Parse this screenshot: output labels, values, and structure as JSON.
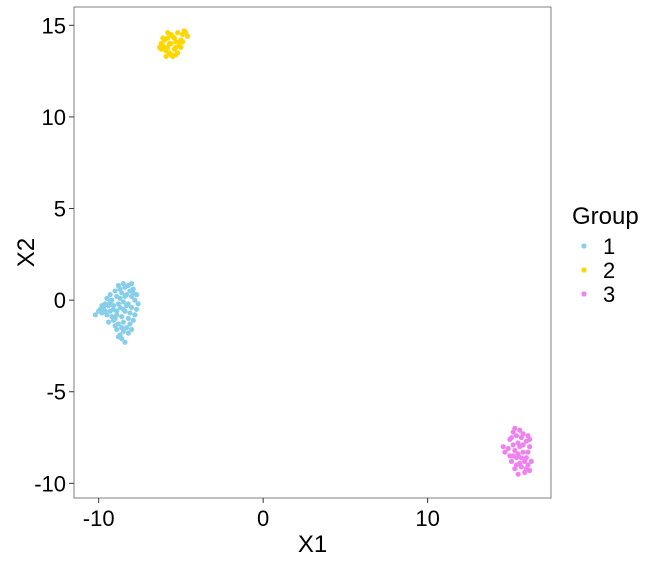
{
  "chart_data": {
    "type": "scatter",
    "xlabel": "X1",
    "ylabel": "X2",
    "xlim": [
      -11.5,
      17.5
    ],
    "ylim": [
      -10.8,
      16.0
    ],
    "xticks": [
      -10,
      0,
      10
    ],
    "xtick_labels": [
      "-10",
      "0",
      "10"
    ],
    "yticks": [
      -10,
      -5,
      0,
      5,
      10,
      15
    ],
    "ytick_labels": [
      "-10",
      "-5",
      "0",
      "5",
      "10",
      "15"
    ],
    "grid": false,
    "legend": {
      "title": "Group",
      "placement": "right"
    },
    "series": [
      {
        "name": "1",
        "color": "#87CEEB",
        "points": [
          [
            -10.2,
            -0.8
          ],
          [
            -10.0,
            -0.6
          ],
          [
            -9.8,
            -0.7
          ],
          [
            -9.7,
            -0.4
          ],
          [
            -9.9,
            -0.5
          ],
          [
            -9.6,
            -0.2
          ],
          [
            -9.5,
            0.1
          ],
          [
            -9.4,
            -0.3
          ],
          [
            -9.3,
            0.3
          ],
          [
            -9.2,
            0.0
          ],
          [
            -9.1,
            -0.5
          ],
          [
            -9.0,
            0.5
          ],
          [
            -8.9,
            0.2
          ],
          [
            -8.8,
            0.8
          ],
          [
            -8.7,
            0.6
          ],
          [
            -8.6,
            0.4
          ],
          [
            -8.5,
            0.9
          ],
          [
            -8.4,
            0.7
          ],
          [
            -8.3,
            0.3
          ],
          [
            -8.2,
            0.8
          ],
          [
            -8.1,
            0.5
          ],
          [
            -8.0,
            0.2
          ],
          [
            -7.9,
            0.6
          ],
          [
            -7.8,
            0.0
          ],
          [
            -7.7,
            0.3
          ],
          [
            -7.6,
            -0.2
          ],
          [
            -7.7,
            -0.5
          ],
          [
            -7.8,
            -0.8
          ],
          [
            -7.9,
            -1.1
          ],
          [
            -8.0,
            -0.4
          ],
          [
            -8.1,
            -0.7
          ],
          [
            -8.2,
            -1.0
          ],
          [
            -8.3,
            -0.3
          ],
          [
            -8.4,
            -0.6
          ],
          [
            -8.5,
            -0.1
          ],
          [
            -8.6,
            -0.9
          ],
          [
            -8.7,
            -0.4
          ],
          [
            -8.8,
            -0.2
          ],
          [
            -8.9,
            -0.8
          ],
          [
            -9.0,
            -1.0
          ],
          [
            -9.1,
            -0.3
          ],
          [
            -9.2,
            -0.9
          ],
          [
            -9.3,
            -0.6
          ],
          [
            -9.4,
            -1.2
          ],
          [
            -9.5,
            -0.8
          ],
          [
            -9.0,
            -1.4
          ],
          [
            -8.9,
            -1.6
          ],
          [
            -8.8,
            -1.3
          ],
          [
            -8.7,
            -1.9
          ],
          [
            -8.6,
            -2.1
          ],
          [
            -8.5,
            -1.7
          ],
          [
            -8.4,
            -2.3
          ],
          [
            -8.3,
            -1.5
          ],
          [
            -8.2,
            -1.8
          ],
          [
            -8.1,
            -1.3
          ],
          [
            -8.0,
            -1.6
          ],
          [
            -8.5,
            -1.2
          ],
          [
            -8.6,
            -1.5
          ],
          [
            -8.8,
            -2.0
          ],
          [
            -9.1,
            -1.1
          ],
          [
            -9.6,
            -0.6
          ],
          [
            -9.8,
            -0.3
          ],
          [
            -9.3,
            -0.1
          ],
          [
            -8.7,
            0.1
          ],
          [
            -8.4,
            0.2
          ],
          [
            -8.0,
            0.9
          ],
          [
            -7.9,
            0.4
          ],
          [
            -8.2,
            -0.2
          ],
          [
            -8.5,
            -0.5
          ],
          [
            -8.9,
            -0.6
          ]
        ]
      },
      {
        "name": "2",
        "color": "#FFD700",
        "points": [
          [
            -6.3,
            13.8
          ],
          [
            -6.2,
            14.0
          ],
          [
            -6.1,
            13.9
          ],
          [
            -6.0,
            14.2
          ],
          [
            -5.9,
            13.6
          ],
          [
            -5.8,
            14.3
          ],
          [
            -5.7,
            14.0
          ],
          [
            -5.6,
            13.4
          ],
          [
            -5.5,
            14.4
          ],
          [
            -5.4,
            13.7
          ],
          [
            -5.3,
            14.1
          ],
          [
            -5.2,
            13.5
          ],
          [
            -5.1,
            13.9
          ],
          [
            -5.0,
            14.2
          ],
          [
            -4.9,
            14.5
          ],
          [
            -4.8,
            14.7
          ],
          [
            -4.7,
            14.6
          ],
          [
            -4.6,
            14.4
          ],
          [
            -5.0,
            13.8
          ],
          [
            -5.5,
            13.3
          ],
          [
            -5.8,
            13.8
          ],
          [
            -6.1,
            14.3
          ],
          [
            -5.6,
            14.5
          ],
          [
            -5.3,
            13.4
          ],
          [
            -5.9,
            13.3
          ],
          [
            -5.4,
            14.3
          ],
          [
            -5.2,
            14.6
          ],
          [
            -6.0,
            13.7
          ],
          [
            -5.7,
            13.5
          ],
          [
            -5.1,
            14.1
          ],
          [
            -4.9,
            14.1
          ],
          [
            -5.6,
            14.0
          ],
          [
            -5.3,
            13.8
          ],
          [
            -6.2,
            13.7
          ],
          [
            -5.8,
            14.6
          ]
        ]
      },
      {
        "name": "3",
        "color": "#EE82EE",
        "points": [
          [
            14.6,
            -8.0
          ],
          [
            14.7,
            -8.3
          ],
          [
            14.9,
            -8.1
          ],
          [
            15.0,
            -7.6
          ],
          [
            15.1,
            -8.8
          ],
          [
            15.2,
            -7.2
          ],
          [
            15.3,
            -7.0
          ],
          [
            15.2,
            -8.5
          ],
          [
            15.3,
            -9.2
          ],
          [
            15.4,
            -7.4
          ],
          [
            15.5,
            -7.8
          ],
          [
            15.5,
            -9.5
          ],
          [
            15.6,
            -7.1
          ],
          [
            15.6,
            -8.9
          ],
          [
            15.7,
            -7.5
          ],
          [
            15.7,
            -9.1
          ],
          [
            15.8,
            -8.3
          ],
          [
            15.8,
            -7.3
          ],
          [
            15.9,
            -9.4
          ],
          [
            16.0,
            -7.7
          ],
          [
            16.0,
            -8.6
          ],
          [
            16.1,
            -7.4
          ],
          [
            16.1,
            -9.0
          ],
          [
            16.2,
            -8.0
          ],
          [
            16.2,
            -9.3
          ],
          [
            16.3,
            -8.8
          ],
          [
            15.4,
            -8.6
          ],
          [
            15.6,
            -8.0
          ],
          [
            15.9,
            -8.8
          ],
          [
            15.2,
            -7.9
          ],
          [
            15.4,
            -9.0
          ],
          [
            16.0,
            -9.2
          ],
          [
            15.8,
            -7.9
          ],
          [
            15.5,
            -8.4
          ],
          [
            15.1,
            -7.5
          ],
          [
            15.3,
            -8.2
          ],
          [
            16.1,
            -8.3
          ],
          [
            15.7,
            -8.6
          ],
          [
            15.0,
            -8.5
          ],
          [
            16.2,
            -7.6
          ]
        ]
      }
    ]
  }
}
